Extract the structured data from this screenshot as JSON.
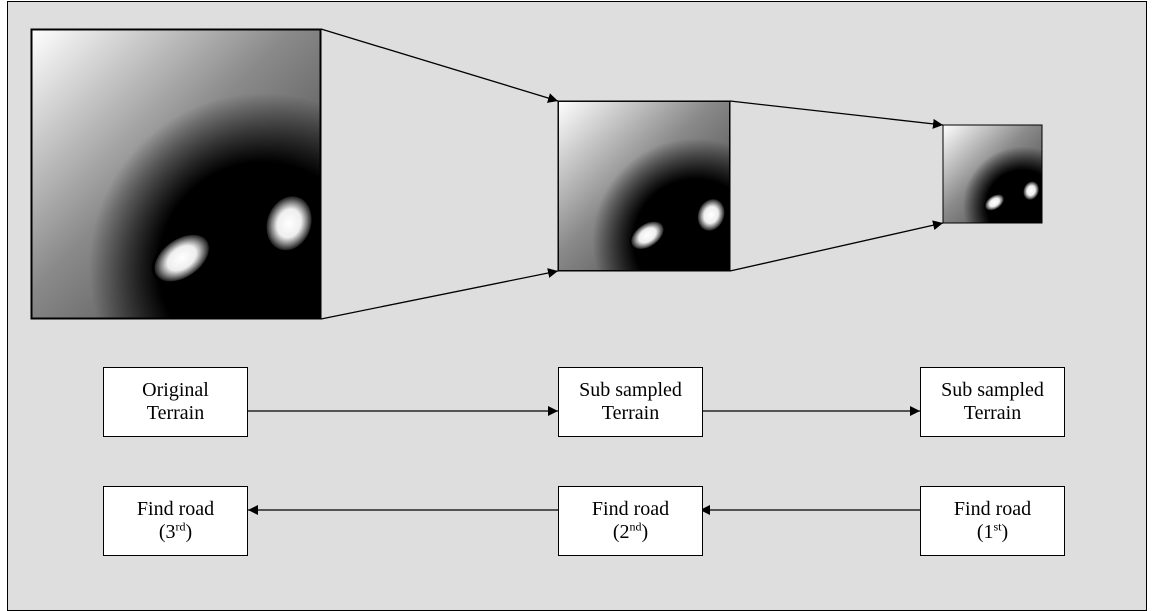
{
  "nodes": [
    {
      "lines": [
        "Original",
        "Terrain"
      ]
    },
    {
      "lines": [
        "Sub sampled",
        "Terrain"
      ]
    },
    {
      "lines": [
        "Sub sampled",
        "Terrain"
      ]
    },
    {
      "lines": [
        "Find road"
      ],
      "open": "(3",
      "suffix": "rd",
      "close": ")"
    },
    {
      "lines": [
        "Find road"
      ],
      "open": "(2",
      "suffix": "nd",
      "close": ")"
    },
    {
      "lines": [
        "Find road"
      ],
      "open": "(1",
      "suffix": "st",
      "close": ")"
    }
  ]
}
